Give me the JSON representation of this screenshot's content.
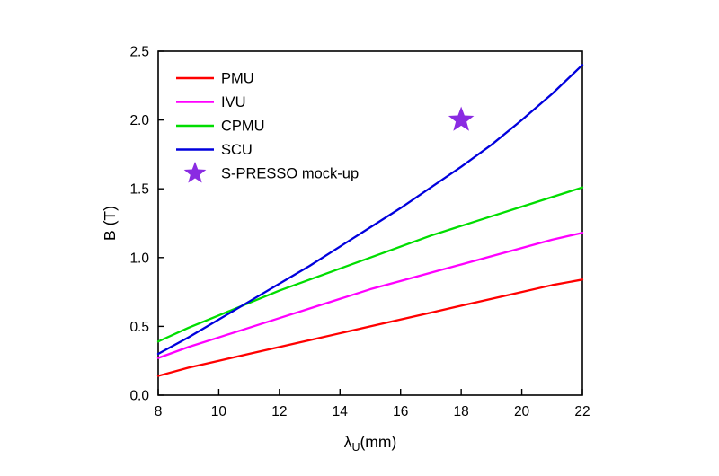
{
  "chart_data": {
    "type": "line",
    "title": "",
    "xlabel": {
      "prefix": "λ",
      "sub": "U",
      "suffix": "(mm)"
    },
    "ylabel": "B (T)",
    "xlim": [
      8,
      22
    ],
    "ylim": [
      0,
      2.5
    ],
    "x_tick_labels": [
      "8",
      "10",
      "12",
      "14",
      "16",
      "18",
      "20",
      "22"
    ],
    "x_ticks": [
      8,
      10,
      12,
      14,
      16,
      18,
      20,
      22
    ],
    "y_tick_labels": [
      "0.0",
      "0.5",
      "1.0",
      "1.5",
      "2.0",
      "2.5"
    ],
    "y_ticks": [
      0.0,
      0.5,
      1.0,
      1.5,
      2.0,
      2.5
    ],
    "grid": false,
    "legend_position": "top-left",
    "x": [
      8,
      9,
      10,
      11,
      12,
      13,
      14,
      15,
      16,
      17,
      18,
      19,
      20,
      21,
      22
    ],
    "series": [
      {
        "name": "PMU",
        "color": "#ff0000",
        "values": [
          0.14,
          0.2,
          0.25,
          0.3,
          0.35,
          0.4,
          0.45,
          0.5,
          0.55,
          0.6,
          0.65,
          0.7,
          0.75,
          0.8,
          0.84
        ]
      },
      {
        "name": "IVU",
        "color": "#ff00ff",
        "values": [
          0.27,
          0.35,
          0.42,
          0.49,
          0.56,
          0.63,
          0.7,
          0.77,
          0.83,
          0.89,
          0.95,
          1.01,
          1.07,
          1.13,
          1.18
        ]
      },
      {
        "name": "CPMU",
        "color": "#00dd00",
        "values": [
          0.39,
          0.49,
          0.58,
          0.67,
          0.76,
          0.84,
          0.92,
          1.0,
          1.08,
          1.16,
          1.23,
          1.3,
          1.37,
          1.44,
          1.51
        ]
      },
      {
        "name": "SCU",
        "color": "#0000dd",
        "values": [
          0.3,
          0.42,
          0.55,
          0.68,
          0.81,
          0.94,
          1.08,
          1.22,
          1.36,
          1.51,
          1.66,
          1.82,
          2.0,
          2.19,
          2.4
        ]
      }
    ],
    "points": [
      {
        "name": "S-PRESSO mock-up",
        "marker": "star",
        "color": "#8a2be2",
        "x": 18,
        "y": 2.0
      }
    ]
  }
}
